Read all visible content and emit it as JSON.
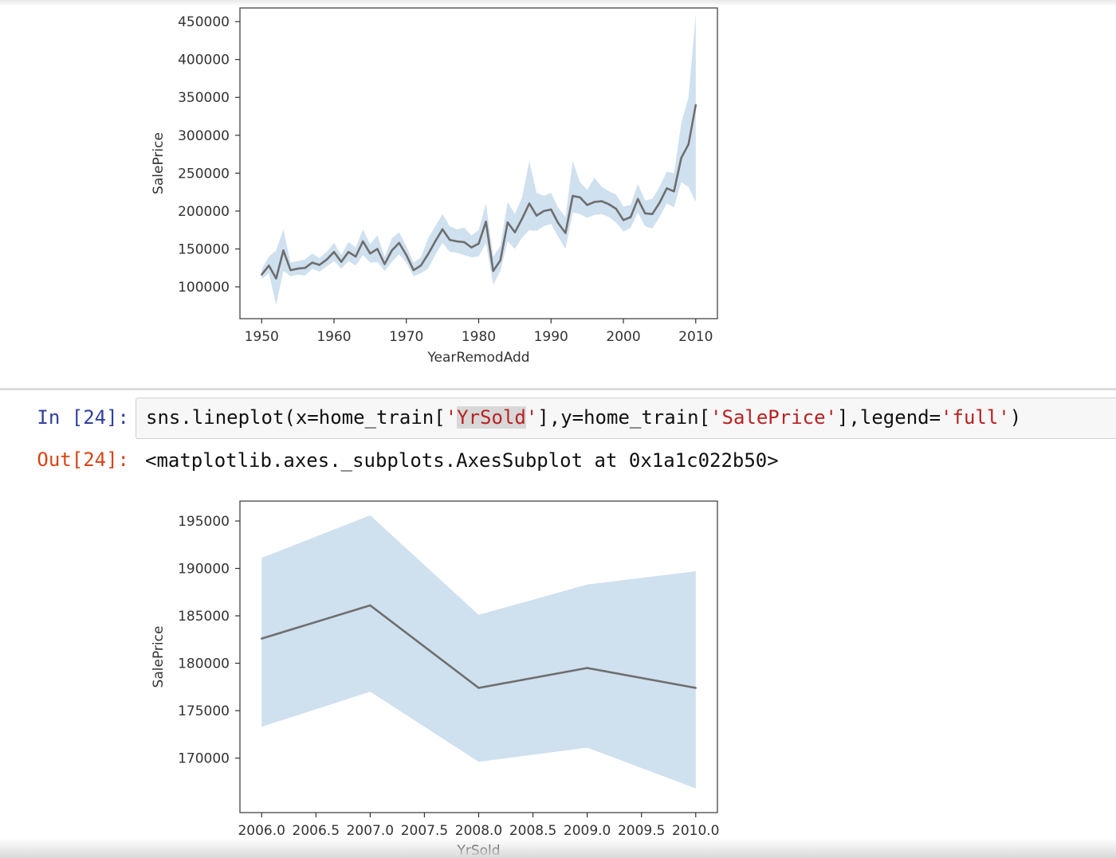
{
  "notebook": {
    "input_prompt": "In [24]:",
    "output_prompt": "Out[24]:",
    "code": {
      "p1": "sns.lineplot(x=home_train[",
      "s1": "'",
      "s1_hl": "YrSold",
      "s1_end": "'",
      "p2": "],y=home_train[",
      "s2": "'SalePrice'",
      "p3": "],legend=",
      "s3": "'full'",
      "p4": ")"
    },
    "output_text": "<matplotlib.axes._subplots.AxesSubplot at 0x1a1c022b50>"
  },
  "colors": {
    "line": "#6e6e6e",
    "ci_band": "#cfe0ef",
    "axes_edge": "#444444",
    "prompt_in": "#303f9f",
    "prompt_out": "#d84315"
  },
  "chart_data": [
    {
      "type": "line",
      "title": "",
      "xlabel": "YearRemodAdd",
      "ylabel": "SalePrice",
      "xlim": [
        1947,
        2013
      ],
      "ylim": [
        58000,
        468000
      ],
      "xticks": [
        1950,
        1960,
        1970,
        1980,
        1990,
        2000,
        2010
      ],
      "xtick_labels": [
        "1950",
        "1960",
        "1970",
        "1980",
        "1990",
        "2000",
        "2010"
      ],
      "yticks": [
        100000,
        150000,
        200000,
        250000,
        300000,
        350000,
        400000,
        450000
      ],
      "ytick_labels": [
        "100000",
        "150000",
        "200000",
        "250000",
        "300000",
        "350000",
        "400000",
        "450000"
      ],
      "grid": false,
      "x": [
        1950,
        1951,
        1952,
        1953,
        1954,
        1955,
        1956,
        1957,
        1958,
        1959,
        1960,
        1961,
        1962,
        1963,
        1964,
        1965,
        1966,
        1967,
        1968,
        1969,
        1970,
        1971,
        1972,
        1973,
        1974,
        1975,
        1976,
        1977,
        1978,
        1979,
        1980,
        1981,
        1982,
        1983,
        1984,
        1985,
        1986,
        1987,
        1988,
        1989,
        1990,
        1991,
        1992,
        1993,
        1994,
        1995,
        1996,
        1997,
        1998,
        1999,
        2000,
        2001,
        2002,
        2003,
        2004,
        2005,
        2006,
        2007,
        2008,
        2009,
        2010
      ],
      "y": [
        116000,
        128000,
        111000,
        148000,
        122000,
        124000,
        125000,
        132000,
        129000,
        136000,
        146000,
        133000,
        146000,
        140000,
        160000,
        144000,
        150000,
        130000,
        148000,
        158000,
        142000,
        122000,
        128000,
        143000,
        160000,
        176000,
        162000,
        160000,
        159000,
        152000,
        157000,
        186000,
        121000,
        135000,
        185000,
        172000,
        190000,
        210000,
        194000,
        200000,
        202000,
        184000,
        171000,
        220000,
        218000,
        208000,
        212000,
        213000,
        209000,
        203000,
        188000,
        192000,
        216000,
        197000,
        196000,
        211000,
        230000,
        226000,
        270000,
        288000,
        340000
      ],
      "ci_low": [
        110000,
        118000,
        76000,
        121000,
        114000,
        116000,
        115000,
        124000,
        120000,
        127000,
        134000,
        124000,
        134000,
        128000,
        142000,
        132000,
        133000,
        121000,
        133000,
        143000,
        132000,
        114000,
        118000,
        124000,
        142000,
        158000,
        146000,
        145000,
        142000,
        139000,
        140000,
        158000,
        103000,
        121000,
        160000,
        150000,
        165000,
        175000,
        174000,
        180000,
        183000,
        166000,
        150000,
        198000,
        196000,
        191000,
        195000,
        196000,
        192000,
        185000,
        173000,
        178000,
        198000,
        180000,
        177000,
        192000,
        210000,
        205000,
        238000,
        232000,
        212000
      ],
      "ci_high": [
        123000,
        140000,
        148000,
        176000,
        132000,
        134000,
        136000,
        144000,
        138000,
        146000,
        158000,
        142000,
        159000,
        152000,
        176000,
        156000,
        168000,
        140000,
        164000,
        172000,
        154000,
        132000,
        139000,
        164000,
        180000,
        196000,
        180000,
        176000,
        178000,
        168000,
        175000,
        210000,
        140000,
        154000,
        212000,
        196000,
        218000,
        266000,
        224000,
        220000,
        224000,
        204000,
        192000,
        266000,
        238000,
        228000,
        244000,
        232000,
        226000,
        222000,
        206000,
        208000,
        236000,
        214000,
        216000,
        232000,
        252000,
        250000,
        316000,
        350000,
        460000
      ]
    },
    {
      "type": "line",
      "title": "",
      "xlabel": "YrSold",
      "ylabel": "SalePrice",
      "xlim": [
        2005.8,
        2010.2
      ],
      "ylim": [
        164250,
        197100
      ],
      "xticks": [
        2006.0,
        2006.5,
        2007.0,
        2007.5,
        2008.0,
        2008.5,
        2009.0,
        2009.5,
        2010.0
      ],
      "xtick_labels": [
        "2006.0",
        "2006.5",
        "2007.0",
        "2007.5",
        "2008.0",
        "2008.5",
        "2009.0",
        "2009.5",
        "2010.0"
      ],
      "yticks": [
        170000,
        175000,
        180000,
        185000,
        190000,
        195000
      ],
      "ytick_labels": [
        "170000",
        "175000",
        "180000",
        "185000",
        "190000",
        "195000"
      ],
      "grid": false,
      "x": [
        2006,
        2007,
        2008,
        2009,
        2010
      ],
      "y": [
        182600,
        186100,
        177400,
        179500,
        177400
      ],
      "ci_low": [
        173300,
        177000,
        169600,
        171100,
        166800
      ],
      "ci_high": [
        191100,
        195600,
        185100,
        188300,
        189700
      ]
    }
  ]
}
